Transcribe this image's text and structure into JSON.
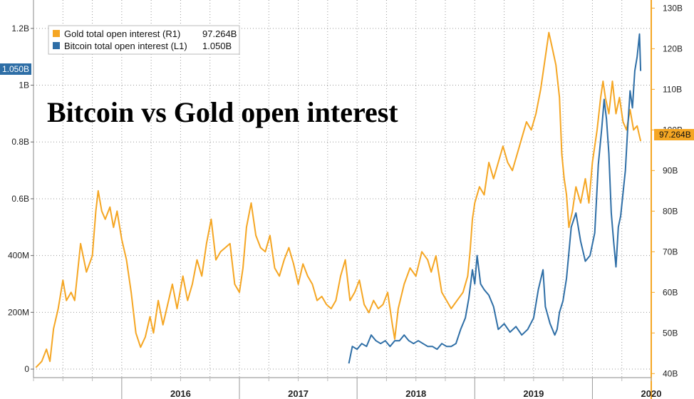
{
  "chart_data": {
    "type": "line",
    "title": "Bitcoin vs Gold open interest",
    "x_ticks": [
      "2016",
      "2017",
      "2018",
      "2019",
      "2020"
    ],
    "x_range": [
      2015.25,
      2020.5
    ],
    "y_left": {
      "range": [
        -0.03,
        1.3
      ],
      "ticks": [
        {
          "value": 0,
          "label": "0"
        },
        {
          "value": 0.2,
          "label": "200M"
        },
        {
          "value": 0.4,
          "label": "400M"
        },
        {
          "value": 0.6,
          "label": "0.6B"
        },
        {
          "value": 0.8,
          "label": "0.8B"
        },
        {
          "value": 1.0,
          "label": "1B"
        },
        {
          "value": 1.2,
          "label": "1.2B"
        }
      ],
      "last_value_badge": "1.050B"
    },
    "y_right": {
      "range": [
        39,
        132
      ],
      "ticks": [
        {
          "value": 40,
          "label": "40B"
        },
        {
          "value": 50,
          "label": "50B"
        },
        {
          "value": 60,
          "label": "60B"
        },
        {
          "value": 70,
          "label": "70B"
        },
        {
          "value": 80,
          "label": "80B"
        },
        {
          "value": 90,
          "label": "90B"
        },
        {
          "value": 100,
          "label": "100B"
        },
        {
          "value": 110,
          "label": "110B"
        },
        {
          "value": 120,
          "label": "120B"
        },
        {
          "value": 130,
          "label": "130B"
        }
      ],
      "last_value_badge": "97.264B"
    },
    "grid": true,
    "legend_position": "top-left",
    "series": [
      {
        "name": "Gold total open interest (R1)",
        "legend_value": "97.264B",
        "axis": "right",
        "color": "#f5a623",
        "points": [
          [
            2015.27,
            41.5
          ],
          [
            2015.32,
            43
          ],
          [
            2015.36,
            46
          ],
          [
            2015.39,
            43
          ],
          [
            2015.42,
            51
          ],
          [
            2015.46,
            56
          ],
          [
            2015.5,
            63
          ],
          [
            2015.53,
            58
          ],
          [
            2015.57,
            60
          ],
          [
            2015.6,
            58
          ],
          [
            2015.65,
            72
          ],
          [
            2015.7,
            65
          ],
          [
            2015.75,
            69
          ],
          [
            2015.78,
            80
          ],
          [
            2015.8,
            85
          ],
          [
            2015.83,
            80
          ],
          [
            2015.86,
            78
          ],
          [
            2015.9,
            81
          ],
          [
            2015.93,
            76
          ],
          [
            2015.96,
            80
          ],
          [
            2016.0,
            73
          ],
          [
            2016.04,
            68
          ],
          [
            2016.08,
            60
          ],
          [
            2016.12,
            50
          ],
          [
            2016.16,
            46.5
          ],
          [
            2016.2,
            49
          ],
          [
            2016.24,
            54
          ],
          [
            2016.27,
            50
          ],
          [
            2016.31,
            58
          ],
          [
            2016.35,
            52
          ],
          [
            2016.39,
            57
          ],
          [
            2016.43,
            62
          ],
          [
            2016.47,
            56
          ],
          [
            2016.52,
            64
          ],
          [
            2016.56,
            58
          ],
          [
            2016.6,
            62
          ],
          [
            2016.64,
            68
          ],
          [
            2016.68,
            64
          ],
          [
            2016.72,
            72
          ],
          [
            2016.76,
            78
          ],
          [
            2016.8,
            68
          ],
          [
            2016.84,
            70
          ],
          [
            2016.88,
            71
          ],
          [
            2016.92,
            72
          ],
          [
            2016.96,
            62
          ],
          [
            2017.0,
            60
          ],
          [
            2017.03,
            66
          ],
          [
            2017.06,
            76
          ],
          [
            2017.1,
            82
          ],
          [
            2017.14,
            74
          ],
          [
            2017.18,
            71
          ],
          [
            2017.22,
            70
          ],
          [
            2017.26,
            74
          ],
          [
            2017.3,
            66
          ],
          [
            2017.34,
            64
          ],
          [
            2017.38,
            68
          ],
          [
            2017.42,
            71
          ],
          [
            2017.46,
            67
          ],
          [
            2017.5,
            62
          ],
          [
            2017.54,
            67
          ],
          [
            2017.58,
            64
          ],
          [
            2017.62,
            62
          ],
          [
            2017.66,
            58
          ],
          [
            2017.7,
            59
          ],
          [
            2017.74,
            57
          ],
          [
            2017.78,
            56
          ],
          [
            2017.82,
            58
          ],
          [
            2017.86,
            64
          ],
          [
            2017.9,
            68
          ],
          [
            2017.94,
            58
          ],
          [
            2017.98,
            60
          ],
          [
            2018.02,
            63
          ],
          [
            2018.06,
            57
          ],
          [
            2018.1,
            55
          ],
          [
            2018.14,
            58
          ],
          [
            2018.18,
            56
          ],
          [
            2018.22,
            57
          ],
          [
            2018.26,
            60
          ],
          [
            2018.3,
            52
          ],
          [
            2018.32,
            48.5
          ],
          [
            2018.35,
            56
          ],
          [
            2018.4,
            62
          ],
          [
            2018.45,
            66
          ],
          [
            2018.5,
            64
          ],
          [
            2018.55,
            70
          ],
          [
            2018.6,
            68
          ],
          [
            2018.63,
            65
          ],
          [
            2018.67,
            69
          ],
          [
            2018.72,
            60
          ],
          [
            2018.76,
            58
          ],
          [
            2018.8,
            56
          ],
          [
            2018.85,
            58
          ],
          [
            2018.9,
            60
          ],
          [
            2018.94,
            64
          ],
          [
            2018.96,
            70
          ],
          [
            2018.98,
            78
          ],
          [
            2019.0,
            82
          ],
          [
            2019.04,
            86
          ],
          [
            2019.08,
            84
          ],
          [
            2019.12,
            92
          ],
          [
            2019.16,
            88
          ],
          [
            2019.2,
            92
          ],
          [
            2019.24,
            96
          ],
          [
            2019.28,
            92
          ],
          [
            2019.32,
            90
          ],
          [
            2019.36,
            94
          ],
          [
            2019.4,
            98
          ],
          [
            2019.44,
            102
          ],
          [
            2019.48,
            100
          ],
          [
            2019.52,
            104
          ],
          [
            2019.56,
            110
          ],
          [
            2019.6,
            118
          ],
          [
            2019.63,
            124
          ],
          [
            2019.66,
            120
          ],
          [
            2019.69,
            116
          ],
          [
            2019.72,
            108
          ],
          [
            2019.74,
            94
          ],
          [
            2019.76,
            88
          ],
          [
            2019.78,
            84
          ],
          [
            2019.8,
            76
          ],
          [
            2019.83,
            80
          ],
          [
            2019.86,
            86
          ],
          [
            2019.9,
            82
          ],
          [
            2019.94,
            88
          ],
          [
            2019.97,
            82
          ],
          [
            2020.0,
            92
          ],
          [
            2020.04,
            100
          ],
          [
            2020.07,
            108
          ],
          [
            2020.09,
            112
          ],
          [
            2020.11,
            108
          ],
          [
            2020.14,
            104
          ],
          [
            2020.17,
            112
          ],
          [
            2020.2,
            104
          ],
          [
            2020.23,
            108
          ],
          [
            2020.26,
            102
          ],
          [
            2020.29,
            100
          ],
          [
            2020.32,
            105
          ],
          [
            2020.35,
            100
          ],
          [
            2020.38,
            101
          ],
          [
            2020.41,
            97.264
          ]
        ]
      },
      {
        "name": "Bitcoin total open interest (L1)",
        "legend_value": "1.050B",
        "axis": "left",
        "color": "#2e6ea6",
        "points": [
          [
            2017.93,
            0.02
          ],
          [
            2017.96,
            0.08
          ],
          [
            2018.0,
            0.07
          ],
          [
            2018.04,
            0.09
          ],
          [
            2018.08,
            0.08
          ],
          [
            2018.12,
            0.12
          ],
          [
            2018.16,
            0.1
          ],
          [
            2018.2,
            0.09
          ],
          [
            2018.24,
            0.1
          ],
          [
            2018.28,
            0.08
          ],
          [
            2018.32,
            0.1
          ],
          [
            2018.36,
            0.1
          ],
          [
            2018.4,
            0.12
          ],
          [
            2018.44,
            0.1
          ],
          [
            2018.48,
            0.09
          ],
          [
            2018.52,
            0.1
          ],
          [
            2018.56,
            0.09
          ],
          [
            2018.6,
            0.08
          ],
          [
            2018.64,
            0.08
          ],
          [
            2018.68,
            0.07
          ],
          [
            2018.72,
            0.09
          ],
          [
            2018.76,
            0.08
          ],
          [
            2018.8,
            0.08
          ],
          [
            2018.84,
            0.09
          ],
          [
            2018.88,
            0.14
          ],
          [
            2018.92,
            0.18
          ],
          [
            2018.95,
            0.25
          ],
          [
            2018.98,
            0.35
          ],
          [
            2019.0,
            0.3
          ],
          [
            2019.02,
            0.4
          ],
          [
            2019.05,
            0.3
          ],
          [
            2019.08,
            0.28
          ],
          [
            2019.12,
            0.26
          ],
          [
            2019.16,
            0.22
          ],
          [
            2019.2,
            0.14
          ],
          [
            2019.25,
            0.16
          ],
          [
            2019.3,
            0.13
          ],
          [
            2019.35,
            0.15
          ],
          [
            2019.4,
            0.12
          ],
          [
            2019.45,
            0.14
          ],
          [
            2019.5,
            0.18
          ],
          [
            2019.54,
            0.28
          ],
          [
            2019.58,
            0.35
          ],
          [
            2019.6,
            0.22
          ],
          [
            2019.64,
            0.16
          ],
          [
            2019.68,
            0.12
          ],
          [
            2019.7,
            0.14
          ],
          [
            2019.72,
            0.2
          ],
          [
            2019.75,
            0.24
          ],
          [
            2019.78,
            0.32
          ],
          [
            2019.82,
            0.5
          ],
          [
            2019.86,
            0.55
          ],
          [
            2019.9,
            0.45
          ],
          [
            2019.94,
            0.38
          ],
          [
            2019.98,
            0.4
          ],
          [
            2020.02,
            0.48
          ],
          [
            2020.05,
            0.72
          ],
          [
            2020.08,
            0.85
          ],
          [
            2020.1,
            0.95
          ],
          [
            2020.12,
            0.88
          ],
          [
            2020.14,
            0.76
          ],
          [
            2020.16,
            0.55
          ],
          [
            2020.18,
            0.45
          ],
          [
            2020.2,
            0.36
          ],
          [
            2020.22,
            0.5
          ],
          [
            2020.24,
            0.54
          ],
          [
            2020.26,
            0.62
          ],
          [
            2020.28,
            0.7
          ],
          [
            2020.3,
            0.85
          ],
          [
            2020.32,
            0.98
          ],
          [
            2020.34,
            0.92
          ],
          [
            2020.36,
            1.05
          ],
          [
            2020.38,
            1.1
          ],
          [
            2020.4,
            1.18
          ],
          [
            2020.41,
            1.05
          ]
        ]
      }
    ]
  }
}
